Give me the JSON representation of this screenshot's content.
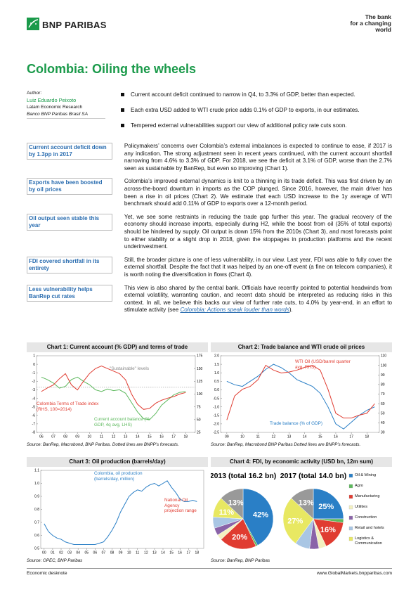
{
  "header": {
    "brand": "BNP PARIBAS",
    "tagline": [
      "The bank",
      "for a changing",
      "world"
    ]
  },
  "title": "Colombia: Oiling the wheels",
  "author": {
    "label": "Author:",
    "name": "Luiz Eduardo Peixoto",
    "dept": "Latam Economic Research",
    "org": "Banco BNP Paribas Brasil SA"
  },
  "bullets": [
    "Current account deficit continued to narrow in Q4, to 3.3% of GDP, better than expected.",
    "Each extra USD added to WTI crude price adds 0.1% of GDP to exports, in our estimates.",
    "Tempered external vulnerabilities support our view of additional policy rate cuts soon."
  ],
  "sections": [
    {
      "sidebar": "Current account deficit down by 1.3pp in 2017",
      "text": "Policymakers’ concerns over Colombia’s external imbalances is expected to continue to ease, if 2017 is any indication. The strong adjustment seen in recent years continued, with the current account shortfall narrowing from 4.6% to 3.3% of GDP. For 2018, we see the deficit at 3.1% of GDP, worse than the 2.7% seen as sustainable by BanRep, but even so improving (Chart 1)."
    },
    {
      "sidebar": "Exports have been boosted by oil prices",
      "text": "Colombia’s improved external dynamics is knit to a thinning in its trade deficit. This was first driven by an across-the-board downturn in imports as the COP plunged. Since 2016, however, the main driver has been a rise in oil prices (Chart 2). We estimate that each USD increase to the 1y average of WTI benchmark should add 0.11% of GDP to exports over a 12-month period."
    },
    {
      "sidebar": "Oil output seen stable this year",
      "text": "Yet, we see some restraints in reducing the trade gap further this year. The gradual recovery of the economy should increase imports, especially during H2, while the boost from oil (35% of total exports) should be hindered by supply. Oil output is down 15% from the 2010s (Chart 3), and most forecasts point to either stability or a slight drop in 2018, given the stoppages in production platforms and the recent underinvestment."
    },
    {
      "sidebar": "FDI covered shortfall in its entirety",
      "text": "Still, the broader picture is one of less vulnerability, in our view. Last year, FDI was able to fully cover the external shortfall. Despite the fact that it was helped by an one-off event (a fine on telecom companies), it is worth noting the diversification in flows (Chart 4)."
    },
    {
      "sidebar": "Less vulnerability helps BanRep cut rates",
      "text": "This view is also shared by the central bank. Officials have recently pointed to potential headwinds from external volatility, warranting caution, and recent data should be interpreted as reducing risks in this context. In all, we believe this backs our view of further rate cuts, to 4.0% by year-end, in an effort to stimulate activity (see ",
      "link": "Colombia: Actions speak louder than words",
      "after": ")."
    }
  ],
  "chart_data": [
    {
      "type": "line",
      "title": "Chart 1: Current account (% GDP) and terms of trade",
      "source": "Source: BanRep, Macrobond, BNP Paribas. Dotted lines are BNPP’s forecasts.",
      "xlim": [
        2005.6,
        2018.8
      ],
      "xticks": [
        {
          "value": 2006,
          "label": "06"
        },
        {
          "value": 2007,
          "label": "07"
        },
        {
          "value": 2008,
          "label": "08"
        },
        {
          "value": 2009,
          "label": "09"
        },
        {
          "value": 2010,
          "label": "10"
        },
        {
          "value": 2011,
          "label": "11"
        },
        {
          "value": 2012,
          "label": "12"
        },
        {
          "value": 2013,
          "label": "13"
        },
        {
          "value": 2014,
          "label": "14"
        },
        {
          "value": 2015,
          "label": "15"
        },
        {
          "value": 2016,
          "label": "16"
        },
        {
          "value": 2017,
          "label": "17"
        },
        {
          "value": 2018,
          "label": "18"
        }
      ],
      "ylim": [
        -8,
        1
      ],
      "yticks": [
        1,
        0,
        -1,
        -2,
        -3,
        -4,
        -5,
        -6,
        -7,
        -8
      ],
      "y2lim": [
        25,
        175
      ],
      "y2ticks": [
        175,
        150,
        125,
        100,
        75,
        50,
        25
      ],
      "x": [
        2006,
        2006.5,
        2007,
        2007.5,
        2008,
        2008.5,
        2009,
        2009.5,
        2010,
        2010.5,
        2011,
        2011.5,
        2012,
        2012.5,
        2013,
        2013.5,
        2014,
        2014.5,
        2015,
        2015.5,
        2016,
        2016.5,
        2017,
        2017.5,
        2018
      ],
      "reference_line": {
        "label": "\"Sustainable\" levels",
        "value": -2.7
      },
      "series": [
        {
          "name": "Current account balance (% GDP, 4q avg, LHS)",
          "color": "#5cb85c",
          "values": [
            -1.5,
            -1.8,
            -2.2,
            -2.8,
            -2.6,
            -1.8,
            -1.5,
            -2.0,
            -2.4,
            -3.0,
            -3.2,
            -2.9,
            -3.1,
            -3.0,
            -3.4,
            -4.5,
            -5.6,
            -6.4,
            -6.5,
            -5.8,
            -4.8,
            -4.2,
            -3.6,
            -3.3,
            -3.2
          ]
        },
        {
          "name": "Colombia Terms of Trade index (RHS, 100=2014)",
          "color": "#e03c31",
          "axis": "y2",
          "values": [
            105,
            112,
            118,
            130,
            140,
            118,
            108,
            125,
            140,
            150,
            155,
            150,
            145,
            140,
            128,
            100,
            80,
            70,
            72,
            82,
            88,
            92,
            95,
            100,
            103
          ]
        }
      ]
    },
    {
      "type": "line",
      "title": "Chart 2: Trade balance and WTI crude oil prices",
      "source": "Source: BanRep, Macrobond BNP Paribas Dotted lines are BNPP’s forecasts.",
      "xlim": [
        2008.6,
        2018.8
      ],
      "xticks": [
        {
          "value": 2009,
          "label": "09"
        },
        {
          "value": 2010,
          "label": "10"
        },
        {
          "value": 2011,
          "label": "11"
        },
        {
          "value": 2012,
          "label": "12"
        },
        {
          "value": 2013,
          "label": "13"
        },
        {
          "value": 2014,
          "label": "14"
        },
        {
          "value": 2015,
          "label": "15"
        },
        {
          "value": 2016,
          "label": "16"
        },
        {
          "value": 2017,
          "label": "17"
        },
        {
          "value": 2018,
          "label": "18"
        }
      ],
      "ylim": [
        -2.5,
        2.0
      ],
      "yticks": [
        {
          "value": 2,
          "label": "2.0"
        },
        1.5,
        {
          "value": 1,
          "label": "1.0"
        },
        0.5,
        {
          "value": 0,
          "label": "0.0"
        },
        -0.5,
        {
          "value": -1,
          "label": "-1.0"
        },
        -1.5,
        {
          "value": -2,
          "label": "-2.0"
        },
        -2.5
      ],
      "y2lim": [
        30,
        110
      ],
      "y2ticks": [
        110,
        100,
        90,
        80,
        70,
        60,
        50,
        40,
        30
      ],
      "x": [
        2009,
        2009.5,
        2010,
        2010.5,
        2011,
        2011.5,
        2012,
        2012.5,
        2013,
        2013.5,
        2014,
        2014.5,
        2015,
        2015.5,
        2016,
        2016.5,
        2017,
        2017.5,
        2018,
        2018.5
      ],
      "series": [
        {
          "name": "Trade balance (% of GDP)",
          "color": "#2a7fc6",
          "values": [
            0.5,
            0.3,
            0.2,
            0.5,
            0.8,
            1.2,
            1.5,
            1.3,
            1.0,
            0.6,
            0.4,
            0.2,
            -0.2,
            -1.0,
            -2.0,
            -2.3,
            -1.9,
            -1.5,
            -1.2,
            -1.0
          ]
        },
        {
          "name": "WTI Oil (USD/barrel quarter avg, RHS)",
          "color": "#e03c31",
          "axis": "y2",
          "values": [
            43,
            68,
            75,
            78,
            85,
            100,
            95,
            92,
            93,
            95,
            98,
            100,
            95,
            75,
            50,
            45,
            45,
            48,
            50,
            60
          ]
        }
      ]
    },
    {
      "type": "line",
      "title": "Chart 3: Oil production (barrels/day)",
      "source": "Source: OPEC, BNP Paribas",
      "xlim": [
        1999.6,
        2018.8
      ],
      "xticks": [
        {
          "value": 2000,
          "label": "00"
        },
        {
          "value": 2001,
          "label": "01"
        },
        {
          "value": 2002,
          "label": "02"
        },
        {
          "value": 2003,
          "label": "03"
        },
        {
          "value": 2004,
          "label": "04"
        },
        {
          "value": 2005,
          "label": "05"
        },
        {
          "value": 2006,
          "label": "06"
        },
        {
          "value": 2007,
          "label": "07"
        },
        {
          "value": 2008,
          "label": "08"
        },
        {
          "value": 2009,
          "label": "09"
        },
        {
          "value": 2010,
          "label": "10"
        },
        {
          "value": 2011,
          "label": "11"
        },
        {
          "value": 2012,
          "label": "12"
        },
        {
          "value": 2013,
          "label": "13"
        },
        {
          "value": 2014,
          "label": "14"
        },
        {
          "value": 2015,
          "label": "15"
        },
        {
          "value": 2016,
          "label": "16"
        },
        {
          "value": 2017,
          "label": "17"
        },
        {
          "value": 2018,
          "label": "18"
        }
      ],
      "ylim": [
        0.5,
        1.1
      ],
      "yticks": [
        1.1,
        {
          "value": 1,
          "label": "1.0"
        },
        0.9,
        0.8,
        0.7,
        0.6,
        0.5
      ],
      "x": [
        2000,
        2000.5,
        2001,
        2001.5,
        2002,
        2002.5,
        2003,
        2003.5,
        2004,
        2004.5,
        2005,
        2005.5,
        2006,
        2006.5,
        2007,
        2007.5,
        2008,
        2008.5,
        2009,
        2009.5,
        2010,
        2010.5,
        2011,
        2011.5,
        2012,
        2012.5,
        2013,
        2013.5,
        2014,
        2014.5,
        2015,
        2015.5,
        2016,
        2016.5,
        2017,
        2017.5,
        2018
      ],
      "annotation": "National Oil Agency projection range",
      "series": [
        {
          "name": "Colombia, oil production (barrels/day, million)",
          "color": "#2a7fc6",
          "values": [
            0.69,
            0.63,
            0.6,
            0.58,
            0.57,
            0.55,
            0.54,
            0.53,
            0.53,
            0.53,
            0.53,
            0.53,
            0.53,
            0.54,
            0.55,
            0.59,
            0.64,
            0.7,
            0.78,
            0.84,
            0.9,
            0.93,
            0.95,
            0.94,
            0.97,
            0.99,
            1.0,
            0.98,
            1.0,
            1.02,
            0.97,
            0.93,
            0.88,
            0.86,
            0.86,
            0.87,
            0.86
          ]
        }
      ]
    },
    {
      "type": "pie",
      "title": "Chart 4: FDI, by economic activity (USD bn, 12m sum)",
      "source": "Source: BanRep, BNP Paribas",
      "categories": [
        "Oil & Mining",
        "Agro",
        "Manufacturing",
        "Utilities",
        "Construction",
        "Retail and hotels",
        "Logistics & Communication",
        null
      ],
      "colors": [
        "#2a7fc6",
        "#5cb85c",
        "#e03c31",
        "#f3f0c0",
        "#8a63a8",
        "#a9c6e4",
        "#e8e862",
        "#999999"
      ],
      "series": [
        {
          "name": "2013 (total 16.2 bn)",
          "values": [
            42,
            1,
            20,
            3,
            4,
            6,
            11,
            13
          ],
          "value_labels": [
            "42%",
            null,
            "20%",
            null,
            null,
            null,
            "11%",
            "13%"
          ]
        },
        {
          "name": "2017 (total 14.0 bn)",
          "values": [
            25,
            2,
            16,
            4,
            5,
            8,
            27,
            13
          ],
          "value_labels": [
            "25%",
            null,
            "16%",
            null,
            null,
            null,
            "27%",
            "13%"
          ]
        }
      ]
    }
  ],
  "footer": {
    "left": "Economic desknote",
    "right": "www.GlobalMarkets.bnpparibas.com"
  }
}
